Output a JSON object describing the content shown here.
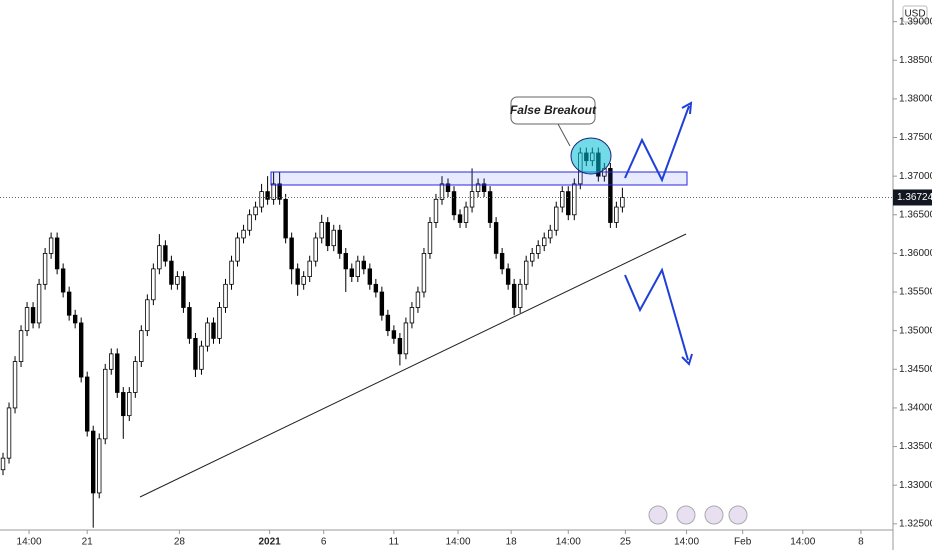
{
  "chart_data": {
    "type": "candlestick",
    "currency": "USD",
    "annotation": "False Breakout",
    "x": [
      0,
      1,
      2,
      3,
      4,
      5,
      6,
      7,
      8,
      9,
      10,
      11,
      12,
      13,
      14,
      15,
      16,
      17,
      18,
      19,
      20,
      21,
      22,
      23,
      24,
      25,
      26,
      27,
      28,
      29,
      30,
      31,
      32,
      33,
      34,
      35,
      36,
      37,
      38,
      39,
      40,
      41,
      42,
      43,
      44,
      45,
      46,
      47,
      48,
      49,
      50,
      51,
      52,
      53,
      54,
      55,
      56,
      57,
      58,
      59,
      60,
      61,
      62,
      63,
      64,
      65,
      66,
      67,
      68,
      69,
      70,
      71,
      72,
      73,
      74,
      75,
      76,
      77,
      78,
      79,
      80,
      81,
      82,
      83,
      84,
      85,
      86,
      87,
      88,
      89,
      90,
      91,
      92,
      93,
      94,
      95,
      96,
      97,
      98,
      99,
      100,
      101,
      102,
      103
    ],
    "open": [
      1.332,
      1.3335,
      1.34,
      1.346,
      1.35,
      1.353,
      1.351,
      1.356,
      1.36,
      1.362,
      1.358,
      1.355,
      1.352,
      1.351,
      1.344,
      1.337,
      1.329,
      1.336,
      1.345,
      1.347,
      1.342,
      1.339,
      1.342,
      1.346,
      1.35,
      1.354,
      1.358,
      1.361,
      1.359,
      1.356,
      1.357,
      1.353,
      1.349,
      1.345,
      1.348,
      1.351,
      1.349,
      1.353,
      1.356,
      1.359,
      1.362,
      1.363,
      1.365,
      1.366,
      1.368,
      1.367,
      1.369,
      1.367,
      1.362,
      1.358,
      1.356,
      1.357,
      1.359,
      1.362,
      1.364,
      1.361,
      1.363,
      1.36,
      1.358,
      1.357,
      1.359,
      1.358,
      1.356,
      1.355,
      1.352,
      1.35,
      1.349,
      1.347,
      1.351,
      1.353,
      1.355,
      1.36,
      1.364,
      1.367,
      1.369,
      1.368,
      1.365,
      1.364,
      1.366,
      1.368,
      1.369,
      1.368,
      1.364,
      1.36,
      1.358,
      1.356,
      1.353,
      1.356,
      1.359,
      1.36,
      1.361,
      1.362,
      1.363,
      1.366,
      1.368,
      1.365,
      1.369,
      1.373,
      1.372,
      1.373,
      1.37,
      1.371,
      1.364,
      1.366
    ],
    "high": [
      1.3342,
      1.3407,
      1.3467,
      1.3507,
      1.3537,
      1.3537,
      1.3567,
      1.3607,
      1.3627,
      1.3627,
      1.3587,
      1.3557,
      1.3527,
      1.3517,
      1.3447,
      1.3377,
      1.3367,
      1.3457,
      1.3477,
      1.3477,
      1.3427,
      1.3427,
      1.3467,
      1.3507,
      1.3547,
      1.3587,
      1.3625,
      1.3617,
      1.3597,
      1.3577,
      1.3577,
      1.3537,
      1.3497,
      1.3487,
      1.3517,
      1.3517,
      1.3537,
      1.3567,
      1.3597,
      1.3627,
      1.3637,
      1.3657,
      1.3667,
      1.369,
      1.37,
      1.3705,
      1.3705,
      1.3677,
      1.3627,
      1.3587,
      1.3577,
      1.3597,
      1.3627,
      1.365,
      1.3647,
      1.3637,
      1.3637,
      1.3607,
      1.3587,
      1.3597,
      1.3597,
      1.3587,
      1.3567,
      1.3557,
      1.3527,
      1.3507,
      1.3497,
      1.3517,
      1.3537,
      1.3557,
      1.3607,
      1.3647,
      1.3677,
      1.37,
      1.3697,
      1.3687,
      1.3657,
      1.3667,
      1.371,
      1.3697,
      1.3697,
      1.3687,
      1.3647,
      1.3607,
      1.3587,
      1.3567,
      1.3567,
      1.3597,
      1.3607,
      1.3617,
      1.3627,
      1.3637,
      1.3667,
      1.3687,
      1.3687,
      1.3697,
      1.3737,
      1.3737,
      1.3737,
      1.3737,
      1.3717,
      1.3717,
      1.3667,
      1.3685
    ],
    "low": [
      1.3313,
      1.3328,
      1.3393,
      1.3453,
      1.3493,
      1.3503,
      1.3503,
      1.3553,
      1.3593,
      1.3573,
      1.3543,
      1.3513,
      1.3503,
      1.3433,
      1.3363,
      1.3245,
      1.3283,
      1.3353,
      1.3443,
      1.3413,
      1.336,
      1.3383,
      1.3413,
      1.3453,
      1.3493,
      1.3533,
      1.3573,
      1.3583,
      1.3553,
      1.3553,
      1.3523,
      1.3483,
      1.344,
      1.3443,
      1.3473,
      1.3483,
      1.3483,
      1.3523,
      1.3553,
      1.3583,
      1.3613,
      1.3623,
      1.3643,
      1.3653,
      1.3663,
      1.3663,
      1.3663,
      1.3613,
      1.356,
      1.3545,
      1.3553,
      1.3563,
      1.3583,
      1.3613,
      1.3603,
      1.3603,
      1.3593,
      1.355,
      1.3563,
      1.3563,
      1.3573,
      1.3553,
      1.3543,
      1.3513,
      1.3493,
      1.3483,
      1.3455,
      1.3463,
      1.3503,
      1.3523,
      1.3543,
      1.3593,
      1.3633,
      1.3663,
      1.3673,
      1.3643,
      1.3633,
      1.3633,
      1.3653,
      1.3673,
      1.3673,
      1.3633,
      1.3593,
      1.3573,
      1.3553,
      1.352,
      1.3523,
      1.3553,
      1.3583,
      1.3593,
      1.3603,
      1.3613,
      1.3623,
      1.3653,
      1.3643,
      1.3643,
      1.3683,
      1.3713,
      1.3713,
      1.3693,
      1.3693,
      1.3633,
      1.3633,
      1.3653
    ],
    "close": [
      1.3335,
      1.34,
      1.346,
      1.35,
      1.353,
      1.351,
      1.356,
      1.36,
      1.362,
      1.358,
      1.355,
      1.352,
      1.351,
      1.344,
      1.337,
      1.329,
      1.336,
      1.345,
      1.347,
      1.342,
      1.339,
      1.342,
      1.346,
      1.35,
      1.354,
      1.358,
      1.361,
      1.359,
      1.356,
      1.357,
      1.353,
      1.349,
      1.345,
      1.348,
      1.351,
      1.349,
      1.353,
      1.356,
      1.359,
      1.362,
      1.363,
      1.365,
      1.366,
      1.368,
      1.367,
      1.369,
      1.367,
      1.362,
      1.358,
      1.356,
      1.357,
      1.359,
      1.362,
      1.364,
      1.361,
      1.363,
      1.36,
      1.358,
      1.357,
      1.359,
      1.358,
      1.356,
      1.355,
      1.352,
      1.35,
      1.349,
      1.347,
      1.351,
      1.353,
      1.355,
      1.36,
      1.364,
      1.367,
      1.369,
      1.368,
      1.365,
      1.364,
      1.366,
      1.368,
      1.369,
      1.368,
      1.364,
      1.36,
      1.358,
      1.356,
      1.353,
      1.356,
      1.359,
      1.36,
      1.361,
      1.362,
      1.363,
      1.366,
      1.368,
      1.365,
      1.369,
      1.373,
      1.372,
      1.373,
      1.37,
      1.371,
      1.364,
      1.366,
      1.36724
    ],
    "last_price": 1.36724,
    "up_color": "#ffffff",
    "down_color": "#000000",
    "outline_color": "#000000",
    "xlim": [
      -0.5,
      148
    ],
    "ylim": [
      1.3242,
      1.3928
    ],
    "xticks": [
      {
        "value": 4.33,
        "label": "14:00"
      },
      {
        "value": 14,
        "label": "21"
      },
      {
        "value": 29.33,
        "label": "28"
      },
      {
        "value": 44.33,
        "label": "2021"
      },
      {
        "value": 53.33,
        "label": "6"
      },
      {
        "value": 65,
        "label": "11"
      },
      {
        "value": 75.67,
        "label": "14:00"
      },
      {
        "value": 84.5,
        "label": "18"
      },
      {
        "value": 94,
        "label": "14:00"
      },
      {
        "value": 103.5,
        "label": "25"
      },
      {
        "value": 113.67,
        "label": "14:00"
      },
      {
        "value": 123,
        "label": "Feb"
      },
      {
        "value": 133,
        "label": "14:00"
      },
      {
        "value": 142.67,
        "label": "8"
      }
    ],
    "yticks": [
      {
        "value": 1.39,
        "label": "1.39000"
      },
      {
        "value": 1.385,
        "label": "1.38500"
      },
      {
        "value": 1.38,
        "label": "1.38000"
      },
      {
        "value": 1.375,
        "label": "1.37500"
      },
      {
        "value": 1.37,
        "label": "1.37000"
      },
      {
        "value": 1.365,
        "label": "1.36500"
      },
      {
        "value": 1.36,
        "label": "1.36000"
      },
      {
        "value": 1.355,
        "label": "1.35500"
      },
      {
        "value": 1.35,
        "label": "1.35000"
      },
      {
        "value": 1.345,
        "label": "1.34500"
      },
      {
        "value": 1.34,
        "label": "1.34000"
      },
      {
        "value": 1.335,
        "label": "1.33500"
      },
      {
        "value": 1.33,
        "label": "1.33000"
      },
      {
        "value": 1.325,
        "label": "1.32500"
      }
    ],
    "grid": false
  }
}
